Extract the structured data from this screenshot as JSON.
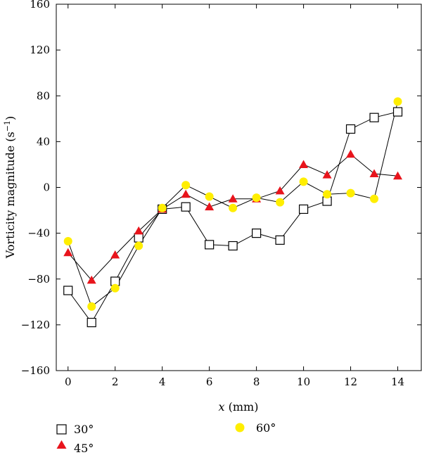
{
  "chart_data": {
    "type": "line",
    "title": "",
    "xlabel": {
      "var": "x",
      "unit": " (mm)"
    },
    "ylabel": {
      "base": "Vorticity magnitude (s",
      "exp": "−1",
      "close": ")"
    },
    "xlim": [
      -0.5,
      15
    ],
    "ylim": [
      -160,
      160
    ],
    "xticks": [
      0,
      2,
      4,
      6,
      8,
      10,
      12,
      14
    ],
    "yticks": [
      -160,
      -120,
      -80,
      -40,
      0,
      40,
      80,
      120,
      160
    ],
    "x": [
      0,
      1,
      2,
      3,
      4,
      5,
      6,
      7,
      8,
      9,
      10,
      11,
      12,
      13,
      14
    ],
    "grid": false,
    "legend_position": "bottom",
    "series": [
      {
        "name": "30°",
        "marker": "square",
        "color": "#ffffff",
        "stroke": "#000000",
        "values": [
          -90,
          -118,
          -82,
          -44,
          -19,
          -17,
          -50,
          -51,
          -40,
          -46,
          -19,
          -12,
          51,
          61,
          66
        ]
      },
      {
        "name": "45°",
        "marker": "triangle",
        "color": "#e8141c",
        "stroke": "#e8141c",
        "values": [
          -57,
          -81,
          -59,
          -38,
          -19,
          -6,
          -17,
          -10,
          -10,
          -3,
          20,
          11,
          29,
          12,
          10
        ]
      },
      {
        "name": "60°",
        "marker": "circle",
        "color": "#ffee00",
        "stroke": "#ffee00",
        "values": [
          -47,
          -104,
          -88,
          -51,
          -18,
          2,
          -8,
          -18,
          -9,
          -13,
          5,
          -6,
          -5,
          -10,
          75
        ]
      }
    ]
  }
}
